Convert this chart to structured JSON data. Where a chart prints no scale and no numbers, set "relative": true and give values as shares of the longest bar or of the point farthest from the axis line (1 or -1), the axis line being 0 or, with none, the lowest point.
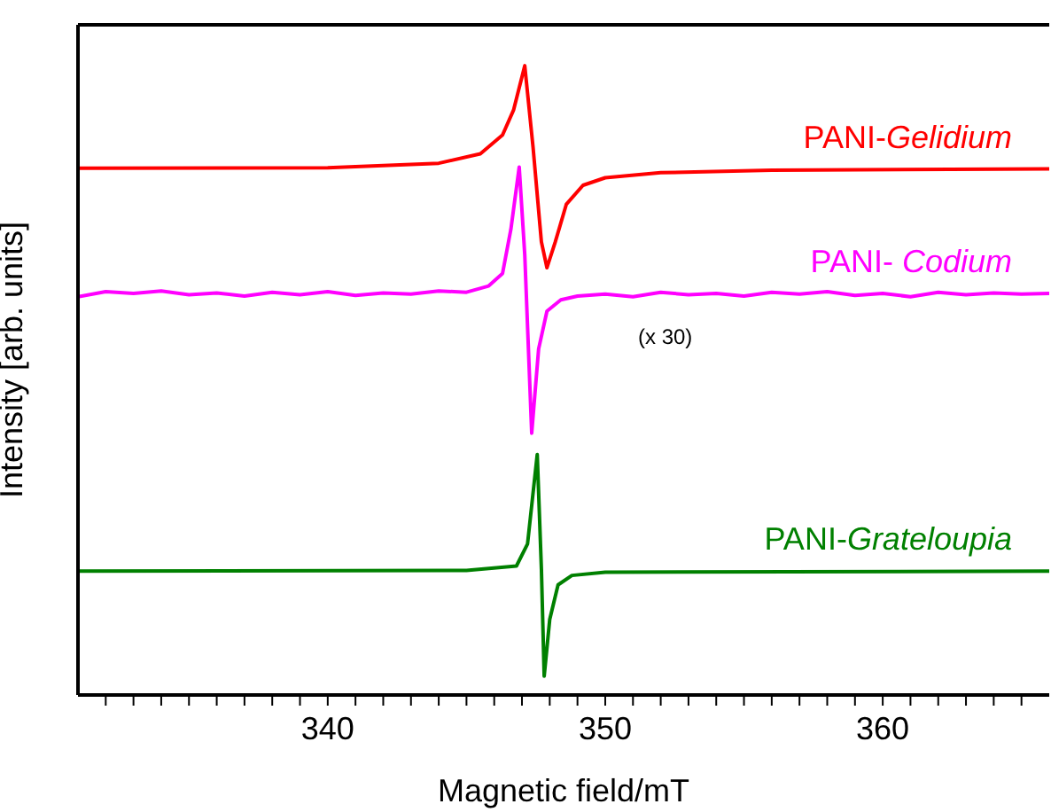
{
  "chart_data": {
    "type": "line",
    "relative": true,
    "xlabel": "Magnetic field/mT",
    "ylabel": "Intensity [arb. units]",
    "xlim": [
      331,
      366
    ],
    "xticks": [
      {
        "value": 332,
        "label": null
      },
      {
        "value": 333,
        "label": null
      },
      {
        "value": 334,
        "label": null
      },
      {
        "value": 335,
        "label": null
      },
      {
        "value": 336,
        "label": null
      },
      {
        "value": 337,
        "label": null
      },
      {
        "value": 338,
        "label": null
      },
      {
        "value": 339,
        "label": null
      },
      340,
      {
        "value": 341,
        "label": null
      },
      {
        "value": 342,
        "label": null
      },
      {
        "value": 343,
        "label": null
      },
      {
        "value": 344,
        "label": null
      },
      {
        "value": 345,
        "label": null
      },
      {
        "value": 346,
        "label": null
      },
      {
        "value": 347,
        "label": null
      },
      {
        "value": 348,
        "label": null
      },
      {
        "value": 349,
        "label": null
      },
      350,
      {
        "value": 351,
        "label": null
      },
      {
        "value": 352,
        "label": null
      },
      {
        "value": 353,
        "label": null
      },
      {
        "value": 354,
        "label": null
      },
      {
        "value": 355,
        "label": null
      },
      {
        "value": 356,
        "label": null
      },
      {
        "value": 357,
        "label": null
      },
      {
        "value": 358,
        "label": null
      },
      {
        "value": 359,
        "label": null
      },
      360,
      {
        "value": 361,
        "label": null
      },
      {
        "value": 362,
        "label": null
      },
      {
        "value": 363,
        "label": null
      },
      {
        "value": 364,
        "label": null
      },
      {
        "value": 365,
        "label": null
      }
    ],
    "marker": "none",
    "line_style": "solid",
    "annotations": [
      "(x 30)"
    ],
    "series": [
      {
        "name": "PANI-Gelidium",
        "color": "#ff0000",
        "x": [
          331,
          340,
          344,
          345.5,
          346.3,
          346.7,
          347.1,
          347.4,
          347.7,
          347.9,
          348.2,
          348.6,
          349.2,
          350,
          352,
          356,
          366
        ],
        "values": [
          0.837,
          0.838,
          0.845,
          0.86,
          0.89,
          0.93,
          1.0,
          0.87,
          0.72,
          0.679,
          0.72,
          0.78,
          0.81,
          0.822,
          0.83,
          0.834,
          0.836
        ]
      },
      {
        "name": "PANI- Codium",
        "color": "#ff00ff",
        "x": [
          331,
          332,
          333,
          334,
          335,
          336,
          337,
          338,
          339,
          340,
          341,
          342,
          343,
          344,
          345,
          345.8,
          346.3,
          346.6,
          346.9,
          347.1,
          347.35,
          347.6,
          347.9,
          348.4,
          349,
          350,
          351,
          352,
          353,
          354,
          355,
          356,
          357,
          358,
          359,
          360,
          361,
          362,
          363,
          364,
          365,
          366
        ],
        "values": [
          0.633,
          0.641,
          0.638,
          0.642,
          0.636,
          0.639,
          0.634,
          0.64,
          0.636,
          0.641,
          0.635,
          0.639,
          0.637,
          0.642,
          0.64,
          0.65,
          0.67,
          0.74,
          0.839,
          0.7,
          0.416,
          0.55,
          0.61,
          0.628,
          0.634,
          0.637,
          0.633,
          0.64,
          0.636,
          0.638,
          0.634,
          0.64,
          0.637,
          0.641,
          0.635,
          0.638,
          0.633,
          0.64,
          0.636,
          0.639,
          0.637,
          0.638
        ]
      },
      {
        "name": "PANI-Grateloupia",
        "color": "#008000",
        "x": [
          331,
          345,
          346.8,
          347.2,
          347.55,
          347.7,
          347.8,
          348.0,
          348.3,
          348.8,
          350,
          366
        ],
        "values": [
          0.197,
          0.198,
          0.205,
          0.24,
          0.382,
          0.2,
          0.03,
          0.12,
          0.175,
          0.19,
          0.195,
          0.197
        ]
      }
    ]
  }
}
